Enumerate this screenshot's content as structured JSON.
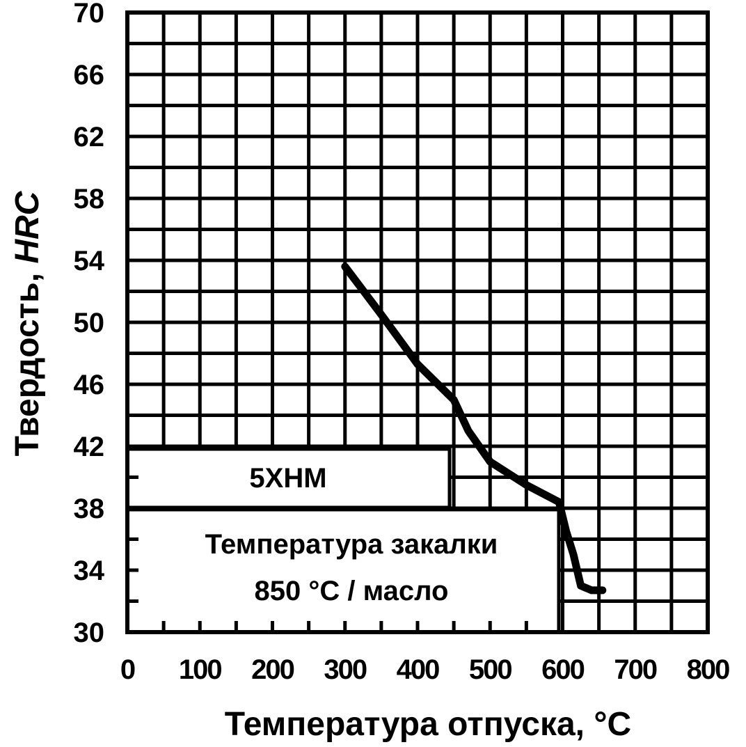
{
  "chart_data": {
    "type": "line",
    "title": "",
    "xlabel": "Температура отпуска, °С",
    "ylabel_prefix": "Твердость, ",
    "ylabel_unit": "HRC",
    "xlim": [
      0,
      800
    ],
    "ylim": [
      30,
      70
    ],
    "x_ticks": [
      "0",
      "100",
      "200",
      "300",
      "400",
      "500",
      "600",
      "700",
      "800"
    ],
    "y_ticks": [
      "30",
      "34",
      "38",
      "42",
      "46",
      "50",
      "54",
      "58",
      "62",
      "66",
      "70"
    ],
    "grid": true,
    "x_grid_step": 50,
    "y_grid_step": 2,
    "series": [
      {
        "x": [
          300,
          350,
          400,
          450,
          470,
          500,
          550,
          595,
          605,
          615,
          625,
          640,
          655
        ],
        "y": [
          53.6,
          50.5,
          47.3,
          45.0,
          43.0,
          41.0,
          39.5,
          38.4,
          36.5,
          35.0,
          33.0,
          32.7,
          32.7
        ]
      }
    ],
    "annotations": {
      "steel_grade": "5ХНМ",
      "quench_line1": "Температура закалки",
      "quench_line2": "850 °С / масло"
    }
  }
}
